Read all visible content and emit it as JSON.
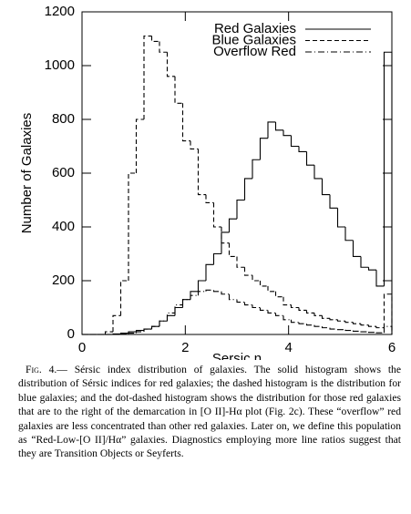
{
  "chart_data": {
    "type": "histogram",
    "xlabel": "Sersic n",
    "ylabel": "Number of Galaxies",
    "bins": [
      0,
      0.15,
      0.3,
      0.45,
      0.6,
      0.75,
      0.9,
      1.05,
      1.2,
      1.35,
      1.5,
      1.65,
      1.8,
      1.95,
      2.1,
      2.25,
      2.4,
      2.55,
      2.7,
      2.85,
      3,
      3.15,
      3.3,
      3.45,
      3.6,
      3.75,
      3.9,
      4.05,
      4.2,
      4.35,
      4.5,
      4.65,
      4.8,
      4.95,
      5.1,
      5.25,
      5.4,
      5.55,
      5.7,
      5.85,
      6
    ],
    "series": [
      {
        "name": "Red Galaxies",
        "color": "#000000",
        "dash": "solid",
        "values": [
          0,
          0,
          0,
          0,
          2,
          5,
          10,
          15,
          20,
          30,
          50,
          70,
          100,
          130,
          160,
          200,
          260,
          300,
          380,
          430,
          500,
          580,
          650,
          730,
          790,
          760,
          740,
          700,
          680,
          630,
          580,
          520,
          470,
          400,
          350,
          290,
          250,
          240,
          180,
          1050
        ]
      },
      {
        "name": "Blue Galaxies",
        "color": "#000000",
        "dash": "dashed",
        "values": [
          0,
          0,
          0,
          10,
          70,
          200,
          600,
          800,
          1110,
          1090,
          1050,
          960,
          860,
          720,
          690,
          520,
          490,
          400,
          340,
          290,
          250,
          220,
          200,
          180,
          160,
          140,
          110,
          100,
          90,
          80,
          70,
          60,
          55,
          50,
          45,
          40,
          35,
          30,
          25,
          150
        ]
      },
      {
        "name": "Overflow Red",
        "color": "#000000",
        "dash": "dashdot",
        "values": [
          0,
          0,
          0,
          0,
          0,
          2,
          5,
          10,
          20,
          30,
          50,
          80,
          110,
          130,
          145,
          160,
          165,
          160,
          150,
          130,
          120,
          110,
          100,
          90,
          80,
          70,
          55,
          45,
          40,
          35,
          30,
          25,
          20,
          18,
          15,
          12,
          10,
          8,
          6,
          30
        ]
      }
    ],
    "xlim": [
      0,
      6
    ],
    "xticks": [
      0,
      2,
      4,
      6
    ],
    "ylim": [
      0,
      1200
    ],
    "yticks": [
      0,
      200,
      400,
      600,
      800,
      1000,
      1200
    ],
    "legend": "upper right"
  },
  "caption": {
    "label": "Fig. 4.—",
    "text": "Sérsic index distribution of galaxies. The solid histogram shows the distribution of Sérsic indices for red galaxies; the dashed histogram is the distribution for blue galaxies; and the dot-dashed histogram shows the distribution for those red galaxies that are to the right of the demarcation in [O II]-Hα plot (Fig. 2c). These “overflow” red galaxies are less concentrated than other red galaxies. Later on, we define this population as “Red-Low-[O II]/Hα” galaxies. Diagnostics employing more line ratios suggest that they are Transition Objects or Seyferts."
  }
}
